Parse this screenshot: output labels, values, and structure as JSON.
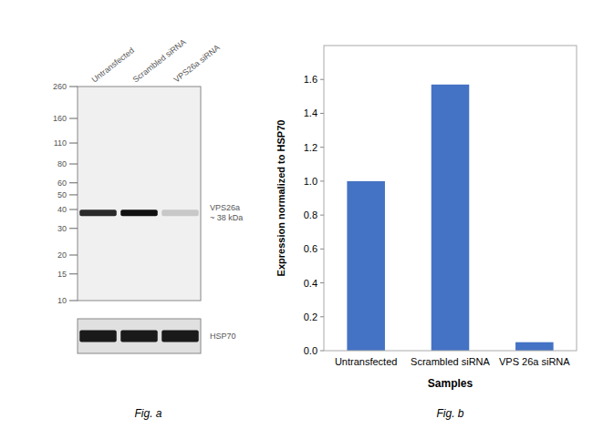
{
  "chart_data": [
    {
      "type": "blot",
      "title": "Fig. a",
      "categories": [
        "Untransfected",
        "Scrambled siRNA",
        "VPS26a siRNA"
      ],
      "log": "y",
      "ylim": [
        10,
        260
      ],
      "yticks": [
        260,
        160,
        110,
        80,
        60,
        50,
        40,
        30,
        20,
        15,
        10
      ],
      "series": [
        {
          "name": "VPS26a\n~ 38 kDa",
          "values": [
            38,
            38,
            38
          ],
          "colors": [
            "#2a2a2a",
            "#111111",
            "#c8c8c8"
          ]
        },
        {
          "name": "HSP70",
          "colors": [
            "#1a1a1a",
            "#1a1a1a",
            "#1a1a1a"
          ]
        }
      ]
    },
    {
      "type": "bar",
      "title": "Fig. b",
      "categories": [
        "Untransfected",
        "Scrambled siRNA",
        "VPS 26a siRNA"
      ],
      "values": [
        1.0,
        1.57,
        0.05
      ],
      "color": "#4472C4",
      "xlabel": "Samples",
      "ylabel": "Expression normalized to HSP70",
      "ylim": [
        0,
        1.8
      ],
      "yticks": [
        {
          "value": 0,
          "label": "0.0"
        },
        0.2,
        0.4,
        0.6,
        0.8,
        {
          "value": 1,
          "label": "1.0"
        },
        1.2,
        1.4,
        1.6
      ],
      "grid": false
    }
  ]
}
